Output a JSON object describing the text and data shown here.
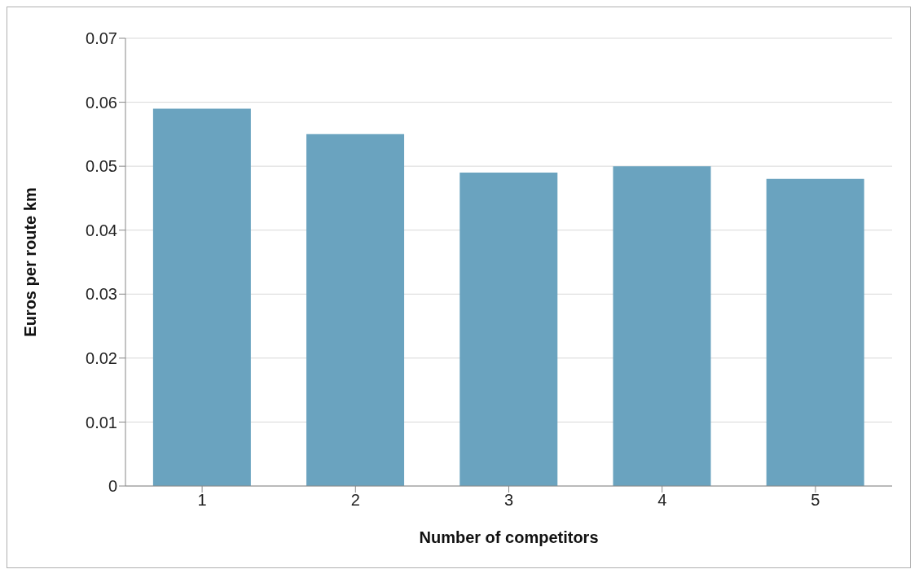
{
  "chart_data": {
    "type": "bar",
    "xlabel": "Number of competitors",
    "ylabel": "Euros per route km",
    "categories": [
      "1",
      "2",
      "3",
      "4",
      "5"
    ],
    "values": [
      0.059,
      0.055,
      0.049,
      0.05,
      0.048
    ],
    "color": "#6aa3bf",
    "ylim": [
      0,
      0.07
    ],
    "yticks": [
      0,
      {
        "value": 0.01,
        "label": "0.01"
      },
      {
        "value": 0.02,
        "label": "0.02"
      },
      {
        "value": 0.03,
        "label": "0.03"
      },
      {
        "value": 0.04,
        "label": "0.04"
      },
      {
        "value": 0.05,
        "label": "0.05"
      },
      {
        "value": 0.06,
        "label": "0.06"
      },
      {
        "value": 0.07,
        "label": "0.07"
      }
    ],
    "grid": "y"
  }
}
